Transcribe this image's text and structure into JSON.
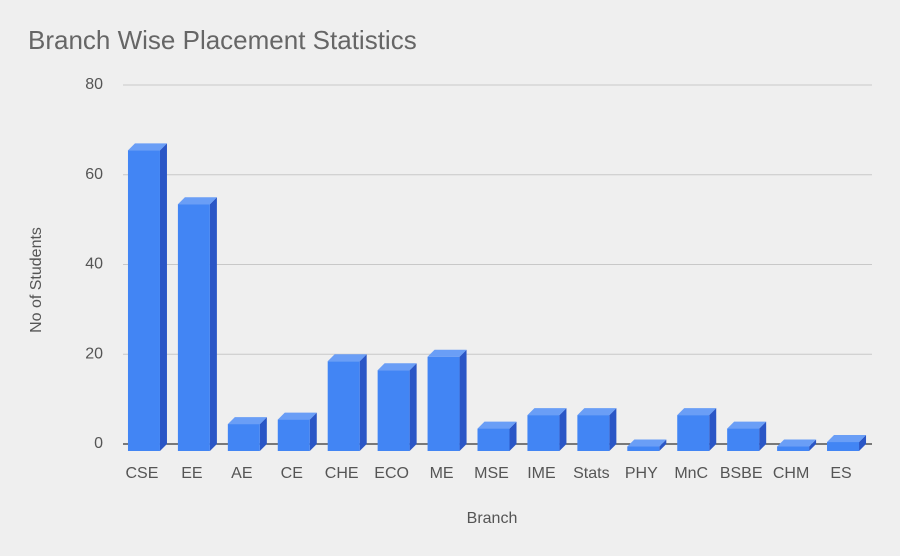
{
  "chart_data": {
    "type": "bar3d",
    "title": "Branch Wise Placement Statistics",
    "x_label": "Branch",
    "y_label": "No of Students",
    "categories": [
      "CSE",
      "EE",
      "AE",
      "CE",
      "CHE",
      "ECO",
      "ME",
      "MSE",
      "IME",
      "Stats",
      "PHY",
      "MnC",
      "BSBE",
      "CHM",
      "ES"
    ],
    "values": [
      67,
      55,
      6,
      7,
      20,
      18,
      21,
      5,
      8,
      8,
      1,
      8,
      5,
      1,
      2
    ],
    "color": "#4285f4",
    "ylim": [
      0,
      80
    ],
    "yticks": [
      0,
      20,
      40,
      60,
      80
    ],
    "grid": true
  }
}
